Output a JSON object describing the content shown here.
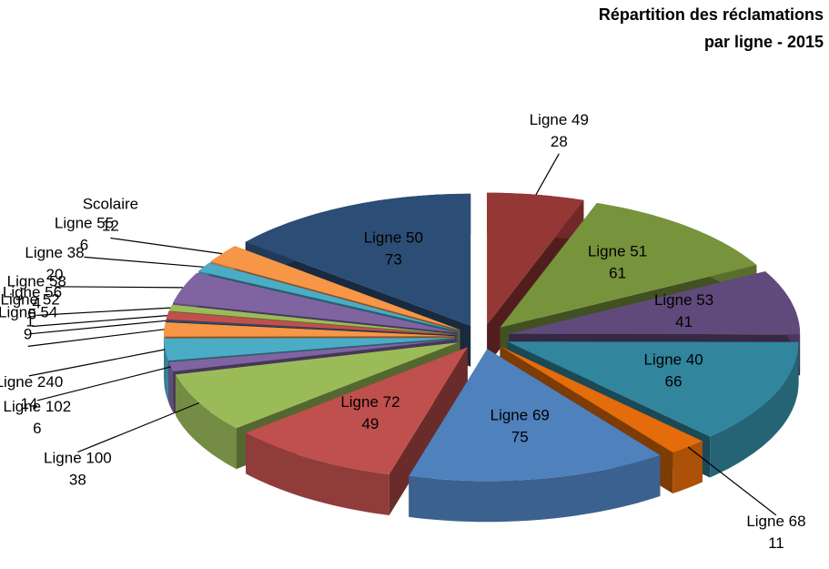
{
  "chart_data": {
    "type": "pie3d",
    "title": [
      "Répartition des réclamations",
      "par ligne - 2015"
    ],
    "categories": [
      "Ligne 49",
      "Ligne 51",
      "Ligne 53",
      "Ligne 40",
      "Ligne 68",
      "Ligne 69",
      "Ligne 72",
      "Ligne 100",
      "Ligne 102",
      "Ligne 240",
      "Ligne 54",
      "Ligne 52",
      "Ligne 56",
      "Ligne 58",
      "Ligne 38",
      "Ligne 55",
      "Scolaire",
      "Ligne 50"
    ],
    "values": [
      28,
      61,
      41,
      66,
      11,
      75,
      49,
      38,
      6,
      14,
      9,
      1,
      5,
      4,
      20,
      6,
      12,
      73
    ],
    "colors": [
      "#953735",
      "#77933c",
      "#604a7b",
      "#31859c",
      "#e46c0a",
      "#4f81bd",
      "#c0504d",
      "#9bbb59",
      "#8064a2",
      "#4bacc6",
      "#f79646",
      "#2c4d75",
      "#c0504d",
      "#9bbb59",
      "#8064a2",
      "#4bacc6",
      "#f79646",
      "#2c4d75"
    ]
  }
}
